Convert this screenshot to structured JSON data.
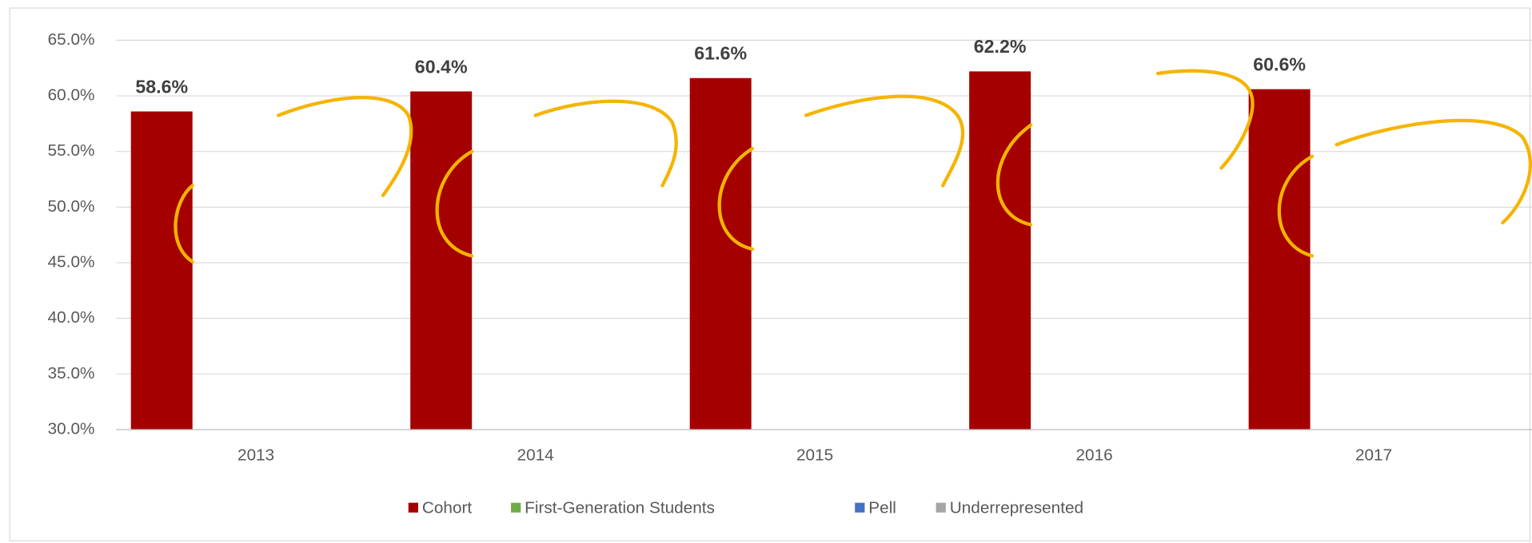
{
  "chart_data": {
    "type": "bar",
    "categories": [
      "2013",
      "2014",
      "2015",
      "2016",
      "2017"
    ],
    "series": [
      {
        "name": "Cohort",
        "color": "#a50000",
        "values": [
          58.6,
          60.4,
          61.6,
          62.2,
          60.6
        ],
        "value_labels": [
          "58.6%",
          "60.4%",
          "61.6%",
          "62.2%",
          "60.6%"
        ]
      },
      {
        "name": "First-Generation Students",
        "color": "#70ad47",
        "values": [
          null,
          null,
          null,
          null,
          null
        ]
      },
      {
        "name": "Pell",
        "color": "#4472c4",
        "values": [
          null,
          null,
          null,
          null,
          null
        ]
      },
      {
        "name": "Underrepresented",
        "color": "#a5a5a5",
        "values": [
          null,
          null,
          null,
          null,
          null
        ]
      }
    ],
    "ylim": [
      30,
      65
    ],
    "yticks": [
      {
        "value": 30,
        "label": "30.0%"
      },
      {
        "value": 35,
        "label": "35.0%"
      },
      {
        "value": 40,
        "label": "40.0%"
      },
      {
        "value": 45,
        "label": "45.0%"
      },
      {
        "value": 50,
        "label": "50.0%"
      },
      {
        "value": 55,
        "label": "55.0%"
      },
      {
        "value": 60,
        "label": "60.0%"
      },
      {
        "value": 65,
        "label": "65.0%"
      }
    ],
    "grid": true,
    "legend": "bottom"
  }
}
